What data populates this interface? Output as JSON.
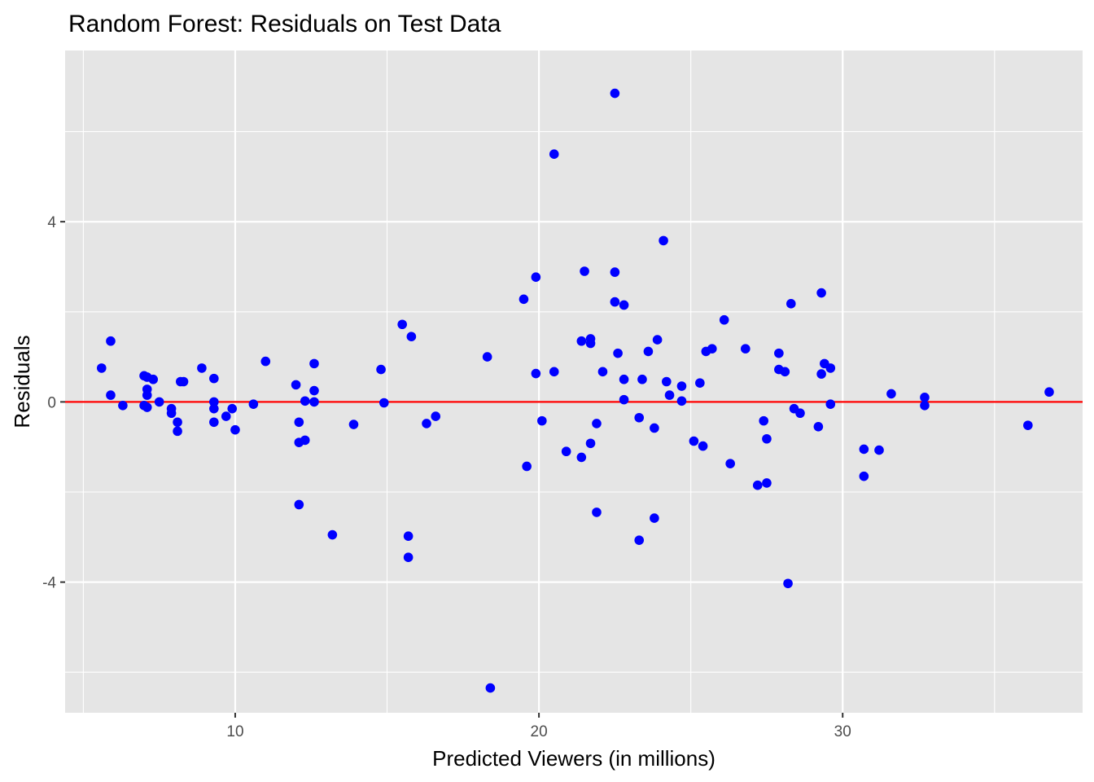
{
  "chart_data": {
    "type": "scatter",
    "title": "Random Forest: Residuals on Test Data",
    "xlabel": "Predicted Viewers (in millions)",
    "ylabel": "Residuals",
    "xlim": [
      4.4,
      37.9
    ],
    "ylim": [
      -6.9,
      7.8
    ],
    "x_ticks": [
      10,
      20,
      30
    ],
    "x_tick_labels": [
      "10",
      "20",
      "30"
    ],
    "y_ticks": [
      -4,
      0,
      4
    ],
    "y_tick_labels": [
      "-4",
      "0",
      "4"
    ],
    "grid": true,
    "legend": "none",
    "reference_line": {
      "y": 0,
      "color": "#ff0000"
    },
    "point_color": "#0000ff",
    "panel_background": "#e5e5e5",
    "points": [
      [
        5.6,
        0.75
      ],
      [
        5.9,
        1.35
      ],
      [
        5.9,
        0.15
      ],
      [
        6.3,
        -0.08
      ],
      [
        7.0,
        0.58
      ],
      [
        7.0,
        -0.08
      ],
      [
        7.1,
        0.55
      ],
      [
        7.1,
        0.28
      ],
      [
        7.1,
        0.15
      ],
      [
        7.1,
        -0.12
      ],
      [
        7.3,
        0.5
      ],
      [
        7.5,
        0.0
      ],
      [
        7.9,
        -0.15
      ],
      [
        7.9,
        -0.25
      ],
      [
        8.1,
        -0.45
      ],
      [
        8.1,
        -0.65
      ],
      [
        8.2,
        0.45
      ],
      [
        8.3,
        0.45
      ],
      [
        8.9,
        0.75
      ],
      [
        9.3,
        0.52
      ],
      [
        9.3,
        0.0
      ],
      [
        9.3,
        -0.15
      ],
      [
        9.3,
        -0.45
      ],
      [
        9.7,
        -0.32
      ],
      [
        9.9,
        -0.15
      ],
      [
        10.0,
        -0.62
      ],
      [
        10.6,
        -0.05
      ],
      [
        11.0,
        0.9
      ],
      [
        12.0,
        0.38
      ],
      [
        12.1,
        -0.45
      ],
      [
        12.1,
        -2.28
      ],
      [
        12.1,
        -0.9
      ],
      [
        12.3,
        0.02
      ],
      [
        12.3,
        -0.85
      ],
      [
        12.6,
        0.85
      ],
      [
        12.6,
        0.25
      ],
      [
        12.6,
        0.0
      ],
      [
        13.2,
        -2.95
      ],
      [
        13.9,
        -0.5
      ],
      [
        14.8,
        0.72
      ],
      [
        14.9,
        -0.02
      ],
      [
        15.5,
        1.72
      ],
      [
        15.7,
        -2.98
      ],
      [
        15.7,
        -3.45
      ],
      [
        15.8,
        1.45
      ],
      [
        16.3,
        -0.48
      ],
      [
        16.6,
        -0.32
      ],
      [
        18.3,
        1.0
      ],
      [
        18.4,
        -6.35
      ],
      [
        19.5,
        2.28
      ],
      [
        19.6,
        -1.43
      ],
      [
        19.9,
        2.77
      ],
      [
        19.9,
        0.63
      ],
      [
        20.1,
        -0.42
      ],
      [
        20.5,
        5.5
      ],
      [
        20.5,
        0.67
      ],
      [
        20.9,
        -1.1
      ],
      [
        21.4,
        -1.23
      ],
      [
        21.4,
        1.35
      ],
      [
        21.5,
        2.9
      ],
      [
        21.7,
        1.4
      ],
      [
        21.7,
        1.3
      ],
      [
        21.7,
        -0.92
      ],
      [
        21.9,
        -0.48
      ],
      [
        21.9,
        -2.45
      ],
      [
        22.1,
        0.67
      ],
      [
        22.5,
        6.85
      ],
      [
        22.5,
        2.88
      ],
      [
        22.5,
        2.22
      ],
      [
        22.6,
        1.08
      ],
      [
        22.8,
        2.15
      ],
      [
        22.8,
        0.5
      ],
      [
        22.8,
        0.05
      ],
      [
        23.3,
        -0.35
      ],
      [
        23.3,
        -3.07
      ],
      [
        23.4,
        0.5
      ],
      [
        23.6,
        1.12
      ],
      [
        23.8,
        -0.58
      ],
      [
        23.8,
        -2.58
      ],
      [
        23.9,
        1.38
      ],
      [
        24.1,
        3.58
      ],
      [
        24.2,
        0.45
      ],
      [
        24.3,
        0.15
      ],
      [
        24.7,
        0.02
      ],
      [
        24.7,
        0.35
      ],
      [
        25.1,
        -0.87
      ],
      [
        25.3,
        0.42
      ],
      [
        25.4,
        -0.98
      ],
      [
        25.5,
        1.12
      ],
      [
        25.7,
        1.18
      ],
      [
        26.1,
        1.82
      ],
      [
        26.3,
        -1.37
      ],
      [
        26.8,
        1.18
      ],
      [
        27.2,
        -1.85
      ],
      [
        27.4,
        -0.42
      ],
      [
        27.5,
        -0.82
      ],
      [
        27.5,
        -1.8
      ],
      [
        27.9,
        1.08
      ],
      [
        27.9,
        0.72
      ],
      [
        28.1,
        0.67
      ],
      [
        28.2,
        -4.03
      ],
      [
        28.3,
        2.18
      ],
      [
        28.4,
        -0.15
      ],
      [
        28.6,
        -0.25
      ],
      [
        29.2,
        -0.55
      ],
      [
        29.3,
        2.42
      ],
      [
        29.3,
        0.62
      ],
      [
        29.4,
        0.85
      ],
      [
        29.6,
        0.75
      ],
      [
        29.6,
        -0.05
      ],
      [
        30.7,
        -1.05
      ],
      [
        30.7,
        -1.65
      ],
      [
        31.2,
        -1.07
      ],
      [
        31.6,
        0.18
      ],
      [
        32.7,
        0.1
      ],
      [
        32.7,
        -0.08
      ],
      [
        36.1,
        -0.52
      ],
      [
        36.8,
        0.22
      ]
    ]
  }
}
